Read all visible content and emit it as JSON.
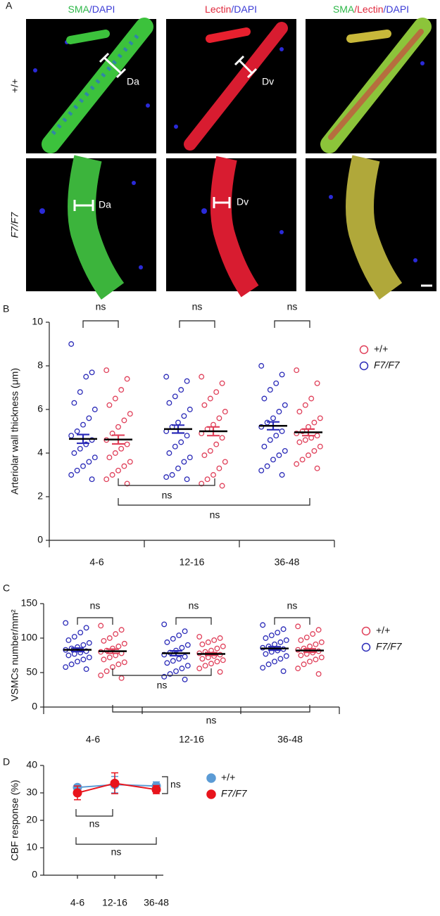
{
  "panel_a": {
    "label": "A",
    "column_titles": [
      [
        {
          "text": "SMA",
          "color": "#2fb84a"
        },
        {
          "text": "/DAPI",
          "color": "#3b3bd6"
        }
      ],
      [
        {
          "text": "Lectin",
          "color": "#e0283c"
        },
        {
          "text": "/DAPI",
          "color": "#3b3bd6"
        }
      ],
      [
        {
          "text": "SMA",
          "color": "#2fb84a"
        },
        {
          "text": "/Lectin",
          "color": "#e0283c"
        },
        {
          "text": "/DAPI",
          "color": "#3b3bd6"
        }
      ]
    ],
    "row_labels": [
      "+/+",
      "F7/F7"
    ],
    "annotations": [
      "Da",
      "Dv",
      "Da",
      "Dv"
    ]
  },
  "chart_data": [
    {
      "type": "dot-plot",
      "panel": "B",
      "ylabel": "Arteriolar wall thickness (μm)",
      "categories": [
        "4-6",
        "12-16",
        "36-48"
      ],
      "ylim": [
        0,
        10
      ],
      "yticks": [
        0,
        2,
        4,
        6,
        8,
        10
      ],
      "series": [
        {
          "name": "+/+",
          "color": "#e0405a",
          "values": [
            [
              7.8,
              7.4,
              6.9,
              6.5,
              6.2,
              5.8,
              5.5,
              5.2,
              4.9,
              4.6,
              4.4,
              4.2,
              4.0,
              3.8,
              3.6,
              3.4,
              3.2,
              3.0,
              2.8,
              2.6
            ],
            [
              7.5,
              7.2,
              6.8,
              6.5,
              6.2,
              5.9,
              5.6,
              5.3,
              5.1,
              4.9,
              4.7,
              4.4,
              4.1,
              3.9,
              3.6,
              3.3,
              3.0,
              2.8,
              2.6,
              2.5
            ],
            [
              7.8,
              7.2,
              6.5,
              6.2,
              5.9,
              5.6,
              5.4,
              5.2,
              5.0,
              4.9,
              4.8,
              4.7,
              4.6,
              4.5,
              4.3,
              4.1,
              3.9,
              3.7,
              3.5,
              3.3
            ]
          ],
          "means": [
            4.62,
            5.0,
            4.95
          ],
          "sems": [
            0.2,
            0.2,
            0.15
          ]
        },
        {
          "name": "F7/F7",
          "color": "#2b2bb8",
          "values": [
            [
              9.0,
              7.7,
              7.5,
              6.8,
              6.3,
              6.0,
              5.6,
              5.3,
              5.0,
              4.8,
              4.6,
              4.4,
              4.2,
              4.0,
              3.8,
              3.6,
              3.4,
              3.2,
              3.0,
              2.8
            ],
            [
              7.5,
              7.3,
              6.9,
              6.6,
              6.3,
              6.0,
              5.7,
              5.4,
              5.2,
              5.0,
              4.8,
              4.5,
              4.3,
              4.0,
              3.8,
              3.6,
              3.3,
              3.0,
              2.9,
              2.8
            ],
            [
              8.0,
              7.6,
              7.2,
              6.9,
              6.5,
              6.2,
              5.9,
              5.6,
              5.4,
              5.2,
              5.0,
              4.8,
              4.6,
              4.3,
              4.1,
              3.9,
              3.7,
              3.4,
              3.2,
              3.0
            ]
          ],
          "means": [
            4.65,
            5.1,
            5.25
          ],
          "sems": [
            0.2,
            0.18,
            0.18
          ]
        }
      ],
      "comparisons": [
        "ns",
        "ns",
        "ns",
        "ns",
        "ns"
      ]
    },
    {
      "type": "dot-plot",
      "panel": "C",
      "ylabel": "VSMCs number/mm²",
      "categories": [
        "4-6",
        "12-16",
        "36-48"
      ],
      "ylim": [
        0,
        150
      ],
      "yticks": [
        0,
        50,
        100,
        150
      ],
      "series": [
        {
          "name": "+/+",
          "color": "#e0405a",
          "values": [
            [
              118,
              112,
              106,
              100,
              96,
              92,
              88,
              85,
              82,
              80,
              78,
              75,
              72,
              69,
              65,
              62,
              58,
              52,
              46,
              42
            ],
            [
              102,
              100,
              97,
              94,
              91,
              88,
              85,
              82,
              80,
              78,
              76,
              74,
              72,
              70,
              68,
              66,
              63,
              60,
              56,
              51
            ],
            [
              117,
              112,
              106,
              101,
              97,
              94,
              91,
              88,
              85,
              83,
              81,
              79,
              77,
              75,
              72,
              69,
              66,
              62,
              56,
              48
            ]
          ],
          "means": [
            81,
            77,
            82
          ],
          "sems": [
            3,
            2,
            2.5
          ]
        },
        {
          "name": "F7/F7",
          "color": "#2b2bb8",
          "values": [
            [
              122,
              115,
              108,
              102,
              97,
              93,
              90,
              87,
              85,
              83,
              81,
              79,
              77,
              75,
              72,
              69,
              66,
              62,
              58,
              55
            ],
            [
              120,
              110,
              104,
              99,
              94,
              90,
              86,
              82,
              79,
              76,
              73,
              70,
              67,
              64,
              60,
              56,
              52,
              48,
              44,
              40
            ],
            [
              119,
              113,
              108,
              104,
              100,
              97,
              94,
              91,
              88,
              86,
              84,
              82,
              80,
              77,
              74,
              70,
              66,
              62,
              57,
              52
            ]
          ],
          "means": [
            83,
            78,
            85
          ],
          "sems": [
            2.5,
            3.5,
            2.5
          ]
        }
      ],
      "comparisons": [
        "ns",
        "ns",
        "ns",
        "ns",
        "ns"
      ]
    },
    {
      "type": "line",
      "panel": "D",
      "ylabel": "CBF response (%)",
      "categories": [
        "4-6",
        "12-16",
        "36-48"
      ],
      "ylim": [
        0,
        40
      ],
      "yticks": [
        0,
        10,
        20,
        30,
        40
      ],
      "series": [
        {
          "name": "+/+",
          "color": "#5b9bd5",
          "values": [
            32,
            33,
            32.5
          ],
          "errors": [
            0.5,
            3,
            1.5
          ]
        },
        {
          "name": "F7/F7",
          "color": "#e8141c",
          "values": [
            30,
            33.5,
            31.2
          ],
          "errors": [
            2.5,
            3.8,
            1.5
          ]
        }
      ],
      "comparisons": [
        "ns",
        "ns",
        "ns"
      ]
    }
  ]
}
